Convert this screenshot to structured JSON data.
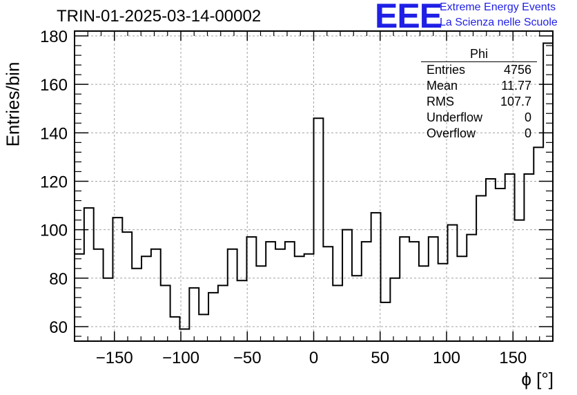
{
  "title": "TRIN-01-2025-03-14-00002",
  "logo": {
    "mark": "EEE",
    "line1": "Extreme Energy Events",
    "line2": "La Scienza nelle Scuole"
  },
  "stats": {
    "name": "Phi",
    "rows": [
      {
        "label": "Entries",
        "value": "4756"
      },
      {
        "label": "Mean",
        "value": "11.77"
      },
      {
        "label": "RMS",
        "value": "107.7"
      },
      {
        "label": "Underflow",
        "value": "0"
      },
      {
        "label": "Overflow",
        "value": "0"
      }
    ]
  },
  "colors": {
    "line": "#000000",
    "grid": "#a0a0a0",
    "logo": "#1f1fe6"
  },
  "chart_data": {
    "type": "bar",
    "title": "TRIN-01-2025-03-14-00002",
    "xlabel": "ϕ [°]",
    "ylabel": "Entries/bin",
    "xlim": [
      -180,
      180
    ],
    "ylim": [
      54,
      182
    ],
    "bin_width": 7.2,
    "xticks": [
      -150,
      -100,
      -50,
      0,
      50,
      100,
      150
    ],
    "xtick_labels": [
      "−150",
      "−100",
      "−50",
      "0",
      "50",
      "100",
      "150"
    ],
    "yticks": [
      60,
      80,
      100,
      120,
      140,
      160,
      180
    ],
    "ytick_labels": [
      "60",
      "80",
      "100",
      "120",
      "140",
      "160",
      "180"
    ],
    "grid": true,
    "values": [
      90,
      109,
      92,
      80,
      105,
      99,
      84,
      89,
      92,
      77,
      64,
      59,
      76,
      65,
      74,
      77,
      92,
      79,
      97,
      85,
      95,
      92,
      95,
      89,
      90,
      146,
      93,
      77,
      100,
      81,
      95,
      107,
      70,
      80,
      97,
      95,
      85,
      97,
      86,
      102,
      89,
      98,
      114,
      121,
      117,
      123,
      104,
      123,
      134,
      177
    ]
  }
}
